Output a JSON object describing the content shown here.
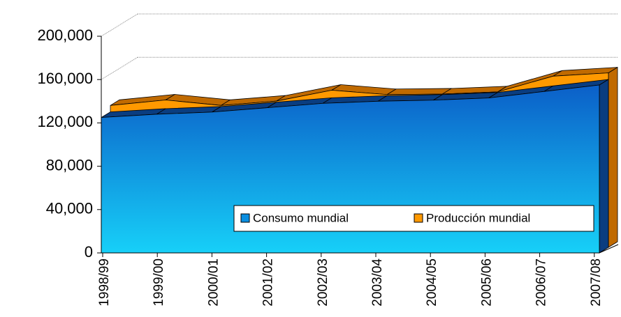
{
  "chart_data": {
    "type": "area3d",
    "categories": [
      "1998/99",
      "1999/00",
      "2000/01",
      "2001/02",
      "2002/03",
      "2003/04",
      "2004/05",
      "2005/06",
      "2006/07",
      "2007/08"
    ],
    "series": [
      {
        "name": "Consumo mundial",
        "color": "#0b6fd0",
        "values": [
          125000,
          128000,
          130000,
          134000,
          138000,
          140000,
          141000,
          143000,
          149000,
          155000
        ]
      },
      {
        "name": "Producción mundial",
        "color": "#ff9900",
        "values": [
          131000,
          136000,
          131000,
          135000,
          145000,
          141000,
          141500,
          143500,
          158000,
          161000
        ]
      }
    ],
    "ylim": [
      0,
      200000
    ],
    "yticks": [
      {
        "value": 0,
        "label": "0"
      },
      {
        "value": 40000,
        "label": "40,000"
      },
      {
        "value": 80000,
        "label": "80,000"
      },
      {
        "value": 120000,
        "label": "120,000"
      },
      {
        "value": 160000,
        "label": "160,000"
      },
      {
        "value": 200000,
        "label": "200,000"
      }
    ],
    "legend": "bottom-right"
  }
}
